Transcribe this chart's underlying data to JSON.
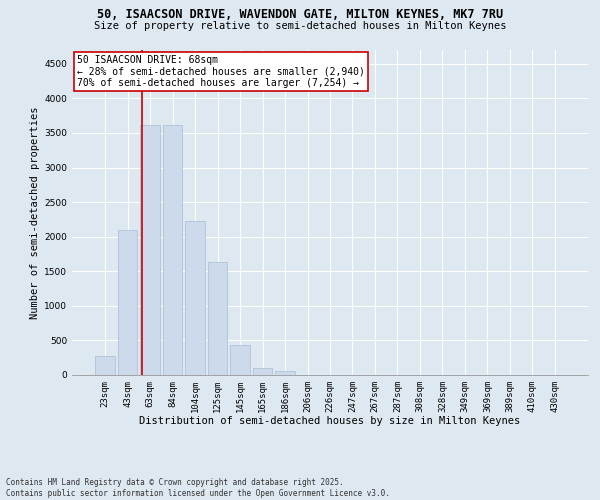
{
  "title1": "50, ISAACSON DRIVE, WAVENDON GATE, MILTON KEYNES, MK7 7RU",
  "title2": "Size of property relative to semi-detached houses in Milton Keynes",
  "xlabel": "Distribution of semi-detached houses by size in Milton Keynes",
  "ylabel": "Number of semi-detached properties",
  "footnote": "Contains HM Land Registry data © Crown copyright and database right 2025.\nContains public sector information licensed under the Open Government Licence v3.0.",
  "bar_labels": [
    "23sqm",
    "43sqm",
    "63sqm",
    "84sqm",
    "104sqm",
    "125sqm",
    "145sqm",
    "165sqm",
    "186sqm",
    "206sqm",
    "226sqm",
    "247sqm",
    "267sqm",
    "287sqm",
    "308sqm",
    "328sqm",
    "349sqm",
    "369sqm",
    "389sqm",
    "410sqm",
    "430sqm"
  ],
  "bar_values": [
    270,
    2100,
    3620,
    3620,
    2230,
    1640,
    440,
    100,
    60,
    0,
    0,
    0,
    0,
    0,
    0,
    0,
    0,
    0,
    0,
    0,
    0
  ],
  "bar_color": "#ccdaeb",
  "bar_edge_color": "#aabdd6",
  "vline_bin": 2,
  "vline_color": "#cc0000",
  "annotation_title": "50 ISAACSON DRIVE: 68sqm",
  "annotation_line1": "← 28% of semi-detached houses are smaller (2,940)",
  "annotation_line2": "70% of semi-detached houses are larger (7,254) →",
  "annotation_box_color": "#ffffff",
  "annotation_box_edge": "#cc0000",
  "ylim": [
    0,
    4700
  ],
  "yticks": [
    0,
    500,
    1000,
    1500,
    2000,
    2500,
    3000,
    3500,
    4000,
    4500
  ],
  "bg_color": "#dde8f0",
  "plot_bg_color": "#dde8f0",
  "grid_color": "#ffffff",
  "title1_fontsize": 8.5,
  "title2_fontsize": 7.5,
  "axis_label_fontsize": 7.5,
  "tick_fontsize": 6.5,
  "annotation_fontsize": 7.0,
  "footnote_fontsize": 5.5
}
